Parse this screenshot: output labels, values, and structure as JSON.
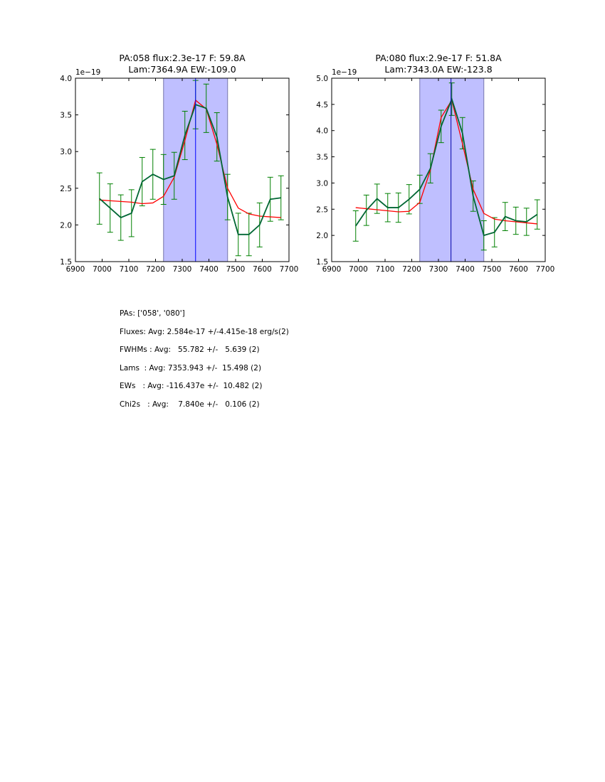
{
  "chart_data": [
    {
      "type": "line",
      "title_line1": "PA:058 flux:2.3e-17 F: 59.8A",
      "title_line2": "Lam:7364.9A EW:-109.0",
      "y_offset_label": "1e−19",
      "xlim": [
        6900,
        7700
      ],
      "ylim": [
        1.5,
        4.0
      ],
      "xticks": [
        6900,
        7000,
        7100,
        7200,
        7300,
        7400,
        7500,
        7600,
        7700
      ],
      "yticks": [
        1.5,
        2.0,
        2.5,
        3.0,
        3.5,
        4.0
      ],
      "ytick_decimals": 1,
      "shaded_region": [
        7230,
        7470
      ],
      "vline": 7350,
      "x": [
        6990,
        7030,
        7070,
        7110,
        7150,
        7190,
        7230,
        7270,
        7310,
        7350,
        7390,
        7430,
        7470,
        7510,
        7550,
        7590,
        7630,
        7670
      ],
      "series": [
        {
          "name": "data",
          "color": "#006633",
          "values": [
            2.36,
            2.23,
            2.1,
            2.16,
            2.59,
            2.69,
            2.62,
            2.67,
            3.22,
            3.64,
            3.59,
            3.2,
            2.38,
            1.87,
            1.87,
            2.0,
            2.35,
            2.37
          ],
          "errors": [
            0.35,
            0.33,
            0.31,
            0.32,
            0.33,
            0.34,
            0.34,
            0.32,
            0.33,
            0.33,
            0.33,
            0.33,
            0.31,
            0.29,
            0.29,
            0.3,
            0.3,
            0.3
          ]
        },
        {
          "name": "model",
          "color": "#ff0000",
          "values": [
            2.34,
            2.33,
            2.32,
            2.31,
            2.29,
            2.3,
            2.39,
            2.65,
            3.15,
            3.7,
            3.58,
            3.1,
            2.5,
            2.23,
            2.15,
            2.12,
            2.11,
            2.1
          ]
        }
      ],
      "colors": {
        "errorbar": "#008000",
        "shade": "#bfbfff",
        "vline": "#0000ff"
      }
    },
    {
      "type": "line",
      "title_line1": "PA:080 flux:2.9e-17 F: 51.8A",
      "title_line2": "Lam:7343.0A EW:-123.8",
      "y_offset_label": "1e−19",
      "xlim": [
        6900,
        7700
      ],
      "ylim": [
        1.5,
        5.0
      ],
      "xticks": [
        6900,
        7000,
        7100,
        7200,
        7300,
        7400,
        7500,
        7600,
        7700
      ],
      "yticks": [
        1.5,
        2.0,
        2.5,
        3.0,
        3.5,
        4.0,
        4.5,
        5.0
      ],
      "ytick_decimals": 1,
      "shaded_region": [
        7230,
        7470
      ],
      "vline": 7347,
      "x": [
        6990,
        7030,
        7070,
        7110,
        7150,
        7190,
        7230,
        7270,
        7310,
        7350,
        7390,
        7430,
        7470,
        7510,
        7550,
        7590,
        7630,
        7670
      ],
      "series": [
        {
          "name": "data",
          "color": "#006633",
          "values": [
            2.18,
            2.48,
            2.7,
            2.53,
            2.53,
            2.69,
            2.88,
            3.28,
            4.08,
            4.6,
            3.95,
            2.75,
            2.0,
            2.06,
            2.36,
            2.28,
            2.26,
            2.4
          ],
          "errors": [
            0.29,
            0.29,
            0.28,
            0.27,
            0.28,
            0.28,
            0.27,
            0.28,
            0.31,
            0.31,
            0.3,
            0.29,
            0.28,
            0.28,
            0.27,
            0.26,
            0.26,
            0.28
          ]
        },
        {
          "name": "model",
          "color": "#ff0000",
          "values": [
            2.53,
            2.51,
            2.49,
            2.47,
            2.45,
            2.46,
            2.63,
            3.25,
            4.25,
            4.58,
            3.75,
            2.88,
            2.42,
            2.31,
            2.28,
            2.26,
            2.24,
            2.22
          ]
        }
      ],
      "colors": {
        "errorbar": "#008000",
        "shade": "#bfbfff",
        "vline": "#0000aa"
      }
    }
  ],
  "summary": [
    "PAs: ['058', '080']",
    "Fluxes: Avg: 2.584e-17 +/-4.415e-18 erg/s(2)",
    "FWHMs : Avg:   55.782 +/-   5.639 (2)",
    "Lams  : Avg: 7353.943 +/-  15.498 (2)",
    "EWs   : Avg: -116.437e +/-  10.482 (2)",
    "Chi2s   : Avg:    7.840e +/-   0.106 (2)"
  ]
}
